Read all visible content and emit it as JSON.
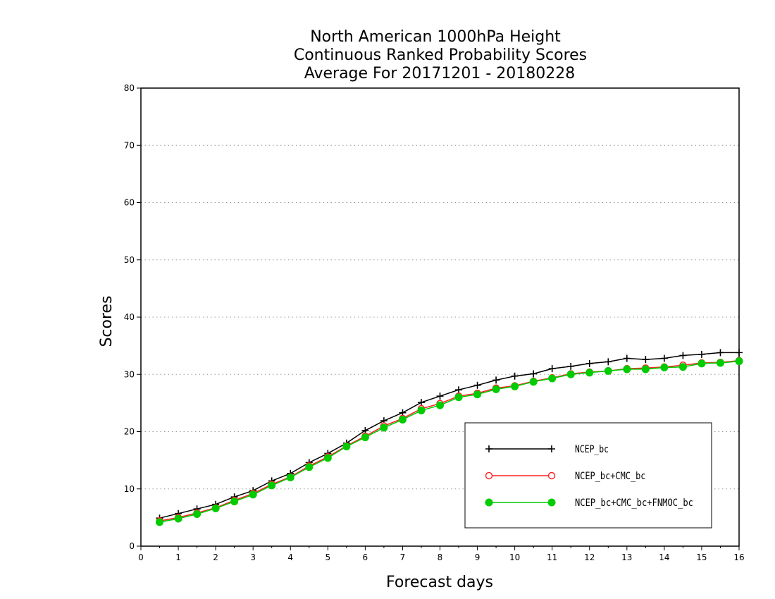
{
  "chart_data": {
    "type": "line",
    "title_lines": [
      "North American 1000hPa Height",
      "Continuous Ranked Probability Scores",
      "Average For 20171201 - 20180228"
    ],
    "xlabel": "Forecast days",
    "ylabel": "Scores",
    "xlim": [
      0,
      16
    ],
    "ylim": [
      0,
      80
    ],
    "x_ticks": [
      "0",
      "1",
      "2",
      "3",
      "4",
      "5",
      "6",
      "7",
      "8",
      "9",
      "10",
      "11",
      "12",
      "13",
      "14",
      "15",
      "16"
    ],
    "y_ticks": [
      "0",
      "10",
      "20",
      "30",
      "40",
      "50",
      "60",
      "70",
      "80"
    ],
    "grid": "horizontal dotted",
    "legend_position": "bottom-right",
    "x": [
      0.5,
      1,
      1.5,
      2,
      2.5,
      3,
      3.5,
      4,
      4.5,
      5,
      5.5,
      6,
      6.5,
      7,
      7.5,
      8,
      8.5,
      9,
      9.5,
      10,
      10.5,
      11,
      11.5,
      12,
      12.5,
      13,
      13.5,
      14,
      14.5,
      15,
      15.5,
      16
    ],
    "series": [
      {
        "name": "NCEP_bc",
        "color": "#000000",
        "marker": "plus",
        "values": [
          4.9,
          5.7,
          6.5,
          7.3,
          8.6,
          9.7,
          11.4,
          12.7,
          14.6,
          16.2,
          18.0,
          20.2,
          21.9,
          23.3,
          25.1,
          26.2,
          27.3,
          28.1,
          29.0,
          29.7,
          30.1,
          31.0,
          31.4,
          31.9,
          32.2,
          32.8,
          32.6,
          32.8,
          33.3,
          33.5,
          33.8,
          33.8
        ]
      },
      {
        "name": "NCEP_bc+CMC_bc",
        "color": "#ff2020",
        "marker": "open-circle",
        "values": [
          4.4,
          5.0,
          5.8,
          6.7,
          8.0,
          9.2,
          10.8,
          12.1,
          14.0,
          15.6,
          17.5,
          19.2,
          21.0,
          22.3,
          24.0,
          24.9,
          26.2,
          26.7,
          27.6,
          28.0,
          28.8,
          29.4,
          30.1,
          30.4,
          30.6,
          31.0,
          31.1,
          31.3,
          31.6,
          32.0,
          32.1,
          32.4
        ]
      },
      {
        "name": "NCEP_bc+CMC_bc+FNMOC_bc",
        "color": "#00cc00",
        "marker": "filled-circle",
        "values": [
          4.2,
          4.8,
          5.6,
          6.6,
          7.8,
          9.0,
          10.6,
          12.0,
          13.8,
          15.4,
          17.4,
          19.0,
          20.7,
          22.1,
          23.7,
          24.6,
          26.0,
          26.5,
          27.4,
          27.9,
          28.7,
          29.3,
          30.0,
          30.3,
          30.6,
          30.9,
          30.9,
          31.2,
          31.3,
          31.9,
          32.0,
          32.3
        ]
      }
    ]
  }
}
